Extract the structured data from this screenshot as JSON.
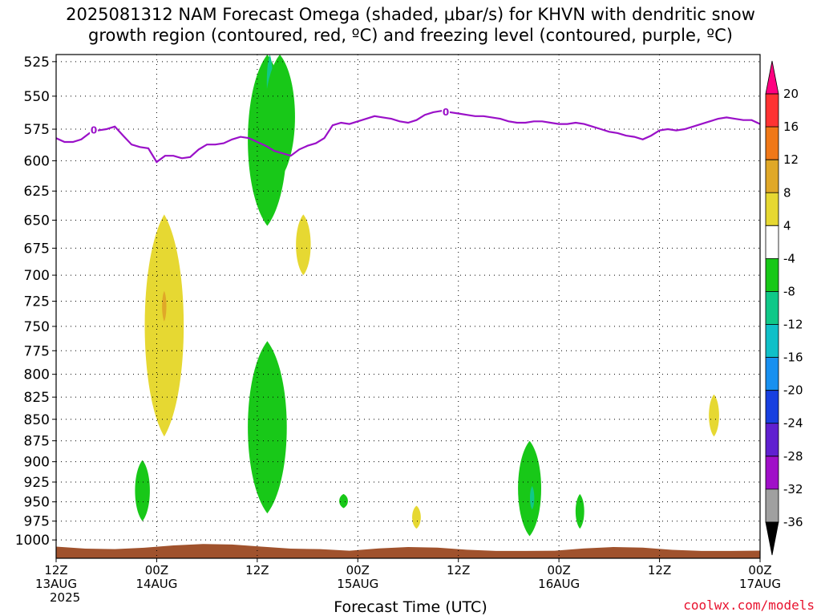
{
  "title": {
    "line1": "2025081312 NAM Forecast Omega (shaded, μbar/s) for KHVN with dendritic snow",
    "line2": "growth region (contoured, red, ºC) and freezing level (contoured, purple, ºC)"
  },
  "credit": "coolwx.com/models",
  "chart_data": {
    "type": "contour-crosssection",
    "xlabel": "Forecast Time (UTC)",
    "x_ticks": [
      {
        "label": [
          "12Z",
          "13AUG",
          "2025"
        ],
        "hours": 0
      },
      {
        "label": [
          "00Z",
          "14AUG"
        ],
        "hours": 12
      },
      {
        "label": [
          "12Z"
        ],
        "hours": 24
      },
      {
        "label": [
          "00Z",
          "15AUG"
        ],
        "hours": 36
      },
      {
        "label": [
          "12Z"
        ],
        "hours": 48
      },
      {
        "label": [
          "00Z",
          "16AUG"
        ],
        "hours": 60
      },
      {
        "label": [
          "12Z"
        ],
        "hours": 72
      },
      {
        "label": [
          "00Z",
          "17AUG"
        ],
        "hours": 84
      }
    ],
    "xlim": [
      0,
      84
    ],
    "ylabel": "",
    "y_ticks": [
      525,
      550,
      575,
      600,
      625,
      650,
      675,
      700,
      725,
      750,
      775,
      800,
      825,
      850,
      875,
      900,
      925,
      950,
      975,
      1000
    ],
    "ylim": [
      520,
      1025
    ],
    "y_scale": "log",
    "grid": true,
    "colorbar": {
      "units": "μbar/s",
      "levels": [
        20,
        16,
        12,
        8,
        4,
        -4,
        -8,
        -12,
        -16,
        -20,
        -24,
        -28,
        -32,
        -36
      ],
      "colors": [
        "#ff0080",
        "#ff3333",
        "#f07818",
        "#e0a828",
        "#e6d832",
        "#ffffff",
        "#18c818",
        "#10c888",
        "#10c0c8",
        "#1890f0",
        "#1840e0",
        "#6020d0",
        "#a010c8",
        "#a0a0a0",
        "#000000"
      ]
    },
    "freezing_level": {
      "label": "0",
      "color": "#9a10c8",
      "points": [
        [
          0,
          582
        ],
        [
          1,
          585
        ],
        [
          2,
          585
        ],
        [
          3,
          583
        ],
        [
          4,
          578
        ],
        [
          5,
          576
        ],
        [
          6,
          575
        ],
        [
          7,
          573
        ],
        [
          8,
          580
        ],
        [
          9,
          587
        ],
        [
          10,
          589
        ],
        [
          11,
          590
        ],
        [
          12,
          601
        ],
        [
          13,
          596
        ],
        [
          14,
          596
        ],
        [
          15,
          598
        ],
        [
          16,
          597
        ],
        [
          17,
          591
        ],
        [
          18,
          587
        ],
        [
          19,
          587
        ],
        [
          20,
          586
        ],
        [
          21,
          583
        ],
        [
          22,
          581
        ],
        [
          23,
          582
        ],
        [
          24,
          585
        ],
        [
          25,
          588
        ],
        [
          26,
          592
        ],
        [
          27,
          594
        ],
        [
          28,
          596
        ],
        [
          29,
          591
        ],
        [
          30,
          588
        ],
        [
          31,
          586
        ],
        [
          32,
          582
        ],
        [
          33,
          572
        ],
        [
          34,
          570
        ],
        [
          35,
          571
        ],
        [
          36,
          569
        ],
        [
          37,
          567
        ],
        [
          38,
          565
        ],
        [
          39,
          566
        ],
        [
          40,
          567
        ],
        [
          41,
          569
        ],
        [
          42,
          570
        ],
        [
          43,
          568
        ],
        [
          44,
          564
        ],
        [
          45,
          562
        ],
        [
          46,
          561
        ],
        [
          47,
          562
        ],
        [
          48,
          563
        ],
        [
          49,
          564
        ],
        [
          50,
          565
        ],
        [
          51,
          565
        ],
        [
          52,
          566
        ],
        [
          53,
          567
        ],
        [
          54,
          569
        ],
        [
          55,
          570
        ],
        [
          56,
          570
        ],
        [
          57,
          569
        ],
        [
          58,
          569
        ],
        [
          59,
          570
        ],
        [
          60,
          571
        ],
        [
          61,
          571
        ],
        [
          62,
          570
        ],
        [
          63,
          571
        ],
        [
          64,
          573
        ],
        [
          65,
          575
        ],
        [
          66,
          577
        ],
        [
          67,
          578
        ],
        [
          68,
          580
        ],
        [
          69,
          581
        ],
        [
          70,
          583
        ],
        [
          71,
          580
        ],
        [
          72,
          576
        ],
        [
          73,
          575
        ],
        [
          74,
          576
        ],
        [
          75,
          575
        ],
        [
          76,
          573
        ],
        [
          77,
          571
        ],
        [
          78,
          569
        ],
        [
          79,
          567
        ],
        [
          80,
          566
        ],
        [
          81,
          567
        ],
        [
          82,
          568
        ],
        [
          83,
          568
        ],
        [
          84,
          571
        ]
      ]
    },
    "omega_shading": [
      {
        "value_band": "-8 to -4",
        "color": "#18c818",
        "center_hours": 25.2,
        "pressure_range": [
          520,
          655
        ]
      },
      {
        "value_band": "-12 to -8",
        "color": "#10c888",
        "center_hours": 25.5,
        "pressure_range": [
          520,
          560
        ]
      },
      {
        "value_band": "-8 to -4",
        "color": "#18c818",
        "center_hours": 26.7,
        "pressure_range": [
          520,
          615
        ]
      },
      {
        "value_band": "-8 to -4",
        "color": "#18c818",
        "center_hours": 25.2,
        "pressure_range": [
          765,
          965
        ]
      },
      {
        "value_band": "4 to 8",
        "color": "#e6d832",
        "center_hours": 12.9,
        "pressure_range": [
          645,
          870
        ]
      },
      {
        "value_band": "8 to 12",
        "color": "#e0a828",
        "center_hours": 12.9,
        "pressure_range": [
          715,
          745
        ]
      },
      {
        "value_band": "4 to 8",
        "color": "#e6d832",
        "center_hours": 29.5,
        "pressure_range": [
          645,
          700
        ]
      },
      {
        "value_band": "-8 to -4",
        "color": "#18c818",
        "center_hours": 10.3,
        "pressure_range": [
          898,
          975
        ]
      },
      {
        "value_band": "-8 to -4",
        "color": "#18c818",
        "center_hours": 34.3,
        "pressure_range": [
          940,
          958
        ]
      },
      {
        "value_band": "4 to 8",
        "color": "#e6d832",
        "center_hours": 43.0,
        "pressure_range": [
          955,
          985
        ]
      },
      {
        "value_band": "-8 to -4",
        "color": "#18c818",
        "center_hours": 56.5,
        "pressure_range": [
          875,
          995
        ]
      },
      {
        "value_band": "-12 to -8",
        "color": "#10c888",
        "center_hours": 56.8,
        "pressure_range": [
          930,
          960
        ]
      },
      {
        "value_band": "-8 to -4",
        "color": "#18c818",
        "center_hours": 62.5,
        "pressure_range": [
          940,
          985
        ]
      },
      {
        "value_band": "4 to 8",
        "color": "#e6d832",
        "center_hours": 78.5,
        "pressure_range": [
          822,
          870
        ]
      }
    ],
    "terrain": {
      "color": "#a0522d",
      "surface_pressure_range": [
        1003,
        1015
      ]
    }
  }
}
